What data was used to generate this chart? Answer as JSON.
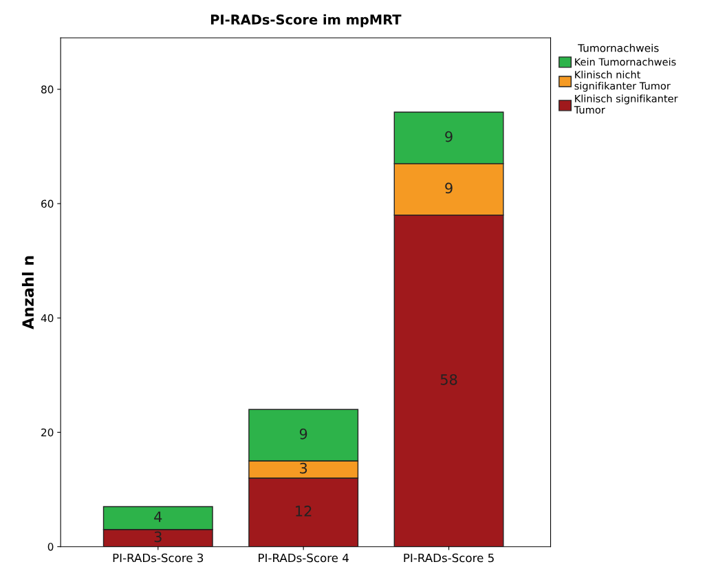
{
  "chart_data": {
    "type": "bar",
    "stacked": true,
    "title": "PI-RADs-Score im mpMRT",
    "ylabel": "Anzahl n",
    "legend_title": "Tumornachweis",
    "categories": [
      "PI-RADs-Score 3",
      "PI-RADs-Score 4",
      "PI-RADs-Score 5"
    ],
    "series": [
      {
        "name": "Klinisch signifikanter Tumor",
        "color": "#a0191c",
        "values": [
          3,
          12,
          58
        ]
      },
      {
        "name": "Klinisch nicht signifikanter Tumor",
        "color": "#f59a23",
        "values": [
          null,
          3,
          9
        ]
      },
      {
        "name": "Kein Tumornachweis",
        "color": "#2db34a",
        "values": [
          4,
          9,
          9
        ]
      }
    ],
    "ylim": [
      0,
      89
    ],
    "yticks": [
      0,
      20,
      40,
      60,
      80
    ],
    "grid": false,
    "legend": "top right",
    "data_labels": true
  }
}
